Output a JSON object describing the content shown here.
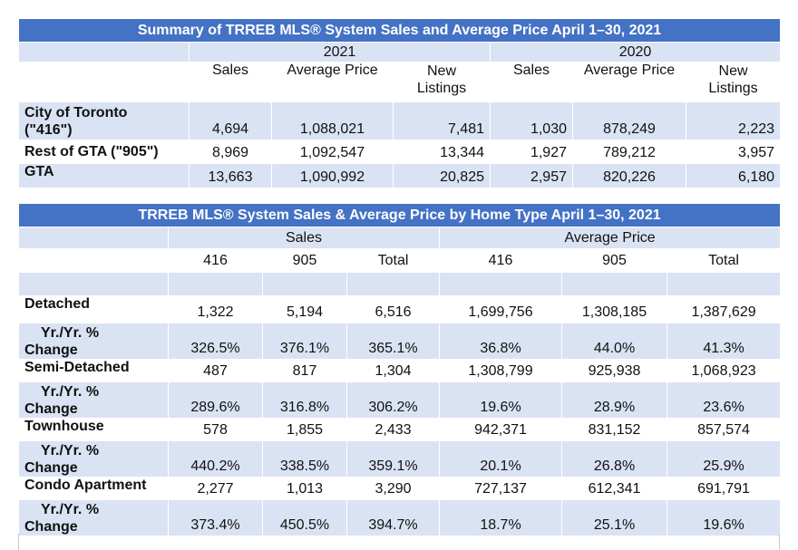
{
  "summary": {
    "title": "Summary of TRREB MLS® System Sales and Average Price April 1–30, 2021",
    "year_a": "2021",
    "year_b": "2020",
    "col_sales": "Sales",
    "col_avg": "Average Price",
    "col_new_l1": "New",
    "col_new_l2": "Listings",
    "rows": [
      {
        "label_l1": "City of Toronto",
        "label_l2": "(\"416\")",
        "v": [
          "4,694",
          "1,088,021",
          "7,481",
          "1,030",
          "878,249",
          "2,223"
        ]
      },
      {
        "label_l1": "Rest of GTA (\"905\")",
        "label_l2": "",
        "v": [
          "8,969",
          "1,092,547",
          "13,344",
          "1,927",
          "789,212",
          "3,957"
        ]
      },
      {
        "label_l1": "GTA",
        "label_l2": "",
        "v": [
          "13,663",
          "1,090,992",
          "20,825",
          "2,957",
          "820,226",
          "6,180"
        ]
      }
    ]
  },
  "hometype": {
    "title": "TRREB MLS® System Sales & Average Price by Home Type April 1–30, 2021",
    "group_sales": "Sales",
    "group_avg": "Average Price",
    "sub": [
      "416",
      "905",
      "Total",
      "416",
      "905",
      "Total"
    ],
    "change_l1": "Yr./Yr. %",
    "change_l2": "Change",
    "types": [
      {
        "name": "Detached",
        "v": [
          "1,322",
          "5,194",
          "6,516",
          "1,699,756",
          "1,308,185",
          "1,387,629"
        ],
        "chg": [
          "326.5%",
          "376.1%",
          "365.1%",
          "36.8%",
          "44.0%",
          "41.3%"
        ]
      },
      {
        "name": "Semi-Detached",
        "v": [
          "487",
          "817",
          "1,304",
          "1,308,799",
          "925,938",
          "1,068,923"
        ],
        "chg": [
          "289.6%",
          "316.8%",
          "306.2%",
          "19.6%",
          "28.9%",
          "23.6%"
        ]
      },
      {
        "name": "Townhouse",
        "v": [
          "578",
          "1,855",
          "2,433",
          "942,371",
          "831,152",
          "857,574"
        ],
        "chg": [
          "440.2%",
          "338.5%",
          "359.1%",
          "20.1%",
          "26.8%",
          "25.9%"
        ]
      },
      {
        "name": "Condo Apartment",
        "v": [
          "2,277",
          "1,013",
          "3,290",
          "727,137",
          "612,341",
          "691,791"
        ],
        "chg": [
          "373.4%",
          "450.5%",
          "394.7%",
          "18.7%",
          "25.1%",
          "19.6%"
        ]
      }
    ]
  }
}
